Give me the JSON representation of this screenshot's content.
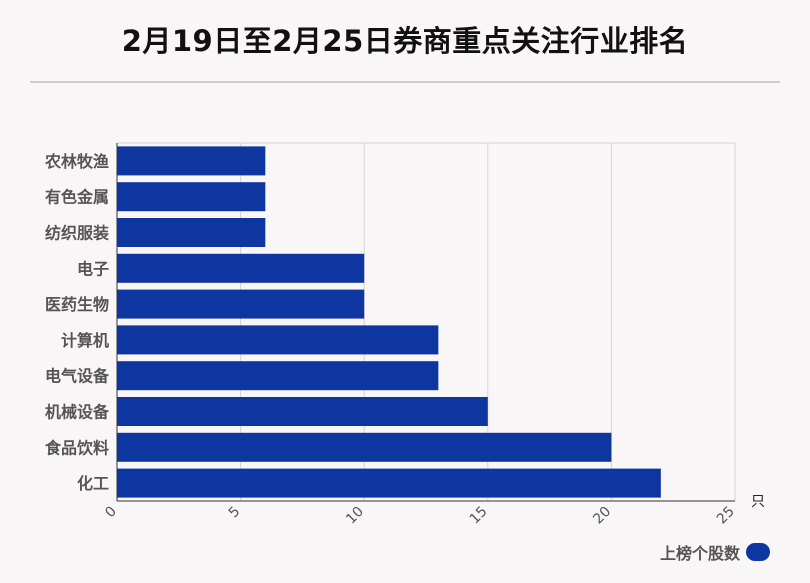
{
  "chart_data": {
    "type": "bar",
    "orientation": "horizontal",
    "title": "2月19日至2月25日券商重点关注行业排名",
    "categories": [
      "农林牧渔",
      "有色金属",
      "纺织服装",
      "电子",
      "医药生物",
      "计算机",
      "电气设备",
      "机械设备",
      "食品饮料",
      "化工"
    ],
    "series": [
      {
        "name": "上榜个股数",
        "values": [
          6,
          6,
          6,
          10,
          10,
          13,
          13,
          15,
          20,
          22
        ],
        "color": "#0e36a0"
      }
    ],
    "x_ticks": [
      "0",
      "5",
      "10",
      "15",
      "20",
      "25"
    ],
    "xlim": [
      0,
      25
    ],
    "unit": "只",
    "grid": true,
    "legend_position": "bottom-right"
  }
}
